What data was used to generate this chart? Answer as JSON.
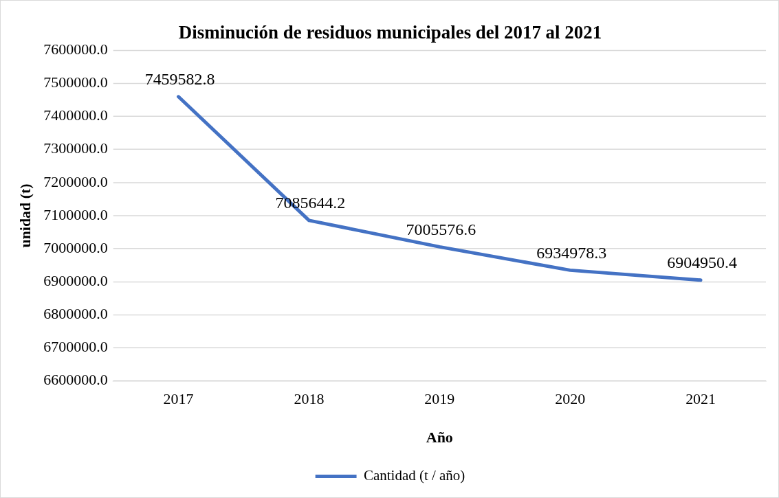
{
  "chart_data": {
    "type": "line",
    "title": "Disminución de residuos municipales del 2017 al 2021",
    "xlabel": "Año",
    "ylabel": "unidad (t)",
    "categories": [
      "2017",
      "2018",
      "2019",
      "2020",
      "2021"
    ],
    "series": [
      {
        "name": "Cantidad (t / año)",
        "color": "#4472c4",
        "values": [
          7459582.8,
          7085644.2,
          7005576.6,
          6934978.3,
          6904950.4
        ]
      }
    ],
    "ylim": [
      6600000,
      7600000
    ],
    "yticks": [
      {
        "value": 6600000,
        "label": "6600000.0"
      },
      {
        "value": 6700000,
        "label": "6700000.0"
      },
      {
        "value": 6800000,
        "label": "6800000.0"
      },
      {
        "value": 6900000,
        "label": "6900000.0"
      },
      {
        "value": 7000000,
        "label": "7000000.0"
      },
      {
        "value": 7100000,
        "label": "7100000.0"
      },
      {
        "value": 7200000,
        "label": "7200000.0"
      },
      {
        "value": 7300000,
        "label": "7300000.0"
      },
      {
        "value": 7400000,
        "label": "7400000.0"
      },
      {
        "value": 7500000,
        "label": "7500000.0"
      },
      {
        "value": 7600000,
        "label": "7600000.0"
      }
    ],
    "grid": "y",
    "legend": "bottom",
    "data_labels": true,
    "marker": "none",
    "line_style": "solid"
  }
}
